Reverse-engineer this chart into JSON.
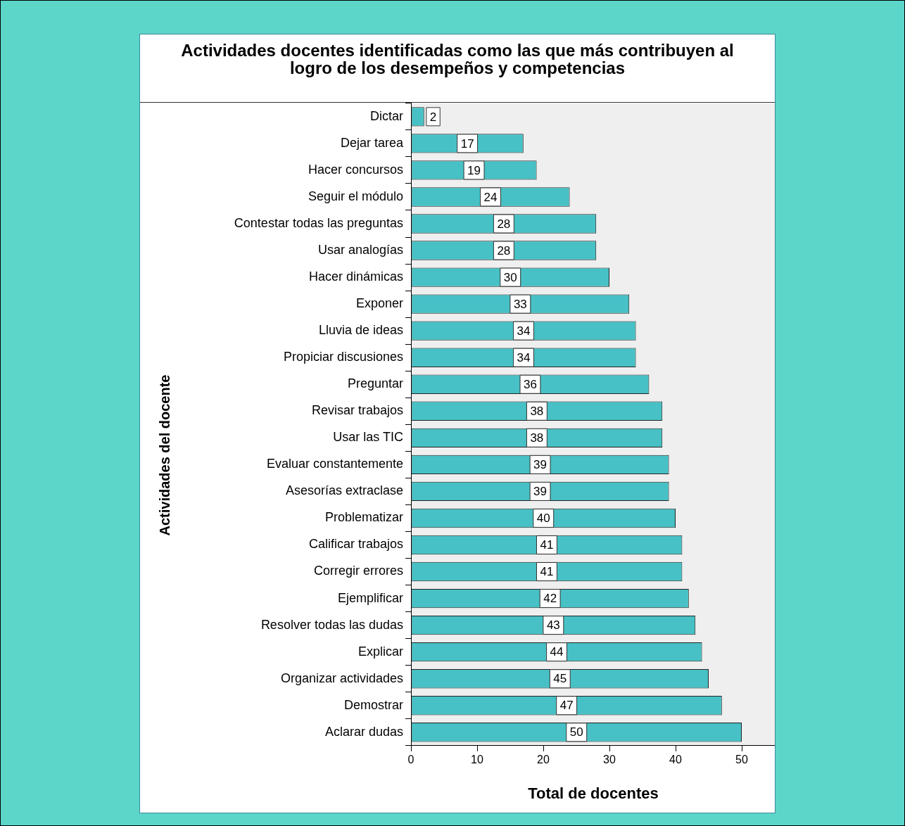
{
  "chart_data": {
    "type": "bar",
    "orientation": "horizontal",
    "title": "Actividades docentes identificadas como las que más contribuyen al logro de los desempeños y competencias",
    "xlabel": "Total de docentes",
    "ylabel": "Actividades del docente",
    "categories": [
      "Dictar",
      "Dejar tarea",
      "Hacer concursos",
      "Seguir el módulo",
      "Contestar todas las preguntas",
      "Usar analogías",
      "Hacer dinámicas",
      "Exponer",
      "Lluvia de ideas",
      "Propiciar discusiones",
      "Preguntar",
      "Revisar trabajos",
      "Usar las TIC",
      "Evaluar constantemente",
      "Asesorías extraclase",
      "Problematizar",
      "Calificar trabajos",
      "Corregir errores",
      "Ejemplificar",
      "Resolver todas las dudas",
      "Explicar",
      "Organizar actividades",
      "Demostrar",
      "Aclarar dudas"
    ],
    "values": [
      2,
      17,
      19,
      24,
      28,
      28,
      30,
      33,
      34,
      34,
      36,
      38,
      38,
      39,
      39,
      40,
      41,
      41,
      42,
      43,
      44,
      45,
      47,
      50
    ],
    "color": "#47c1c5",
    "data_labels": true,
    "xlim": [
      0,
      55
    ],
    "xticks": [
      0,
      10,
      20,
      30,
      40,
      50
    ],
    "grid": false,
    "legend": false
  }
}
